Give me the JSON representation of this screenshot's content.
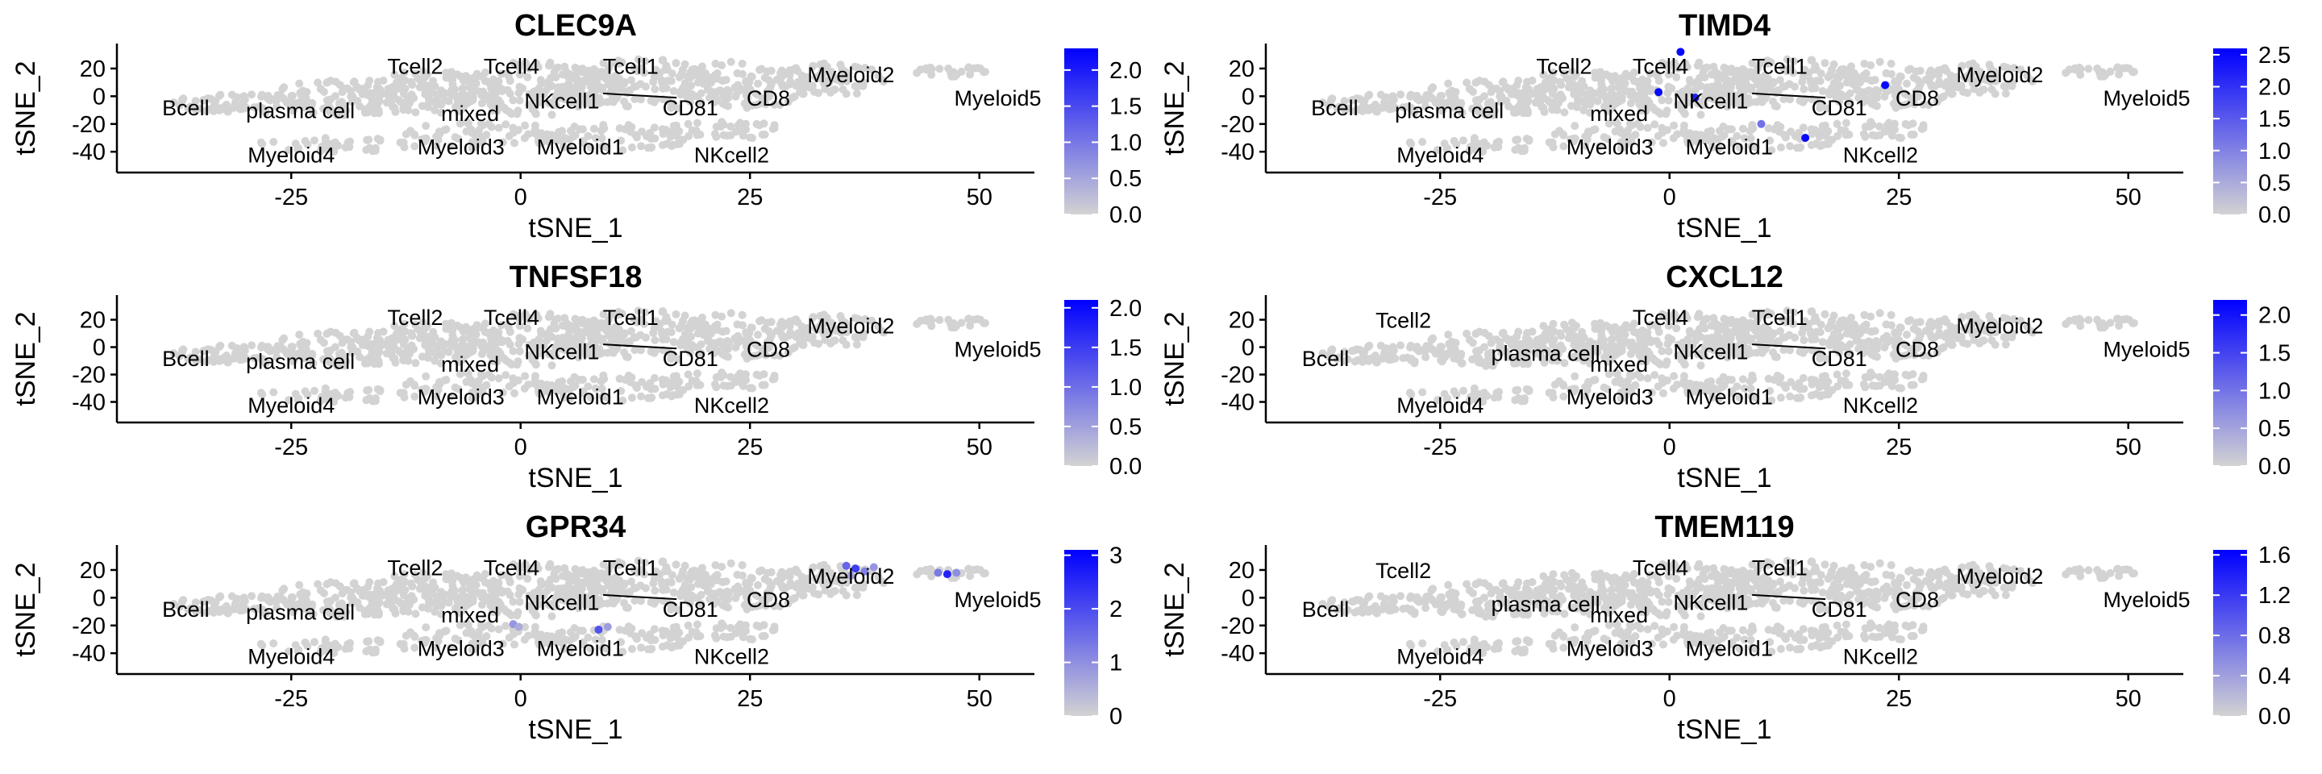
{
  "chart_data": [
    {
      "type": "scatter",
      "title": "CLEC9A",
      "xlabel": "tSNE_1",
      "ylabel": "tSNE_2",
      "xlim": [
        -44,
        56
      ],
      "ylim": [
        -55,
        38
      ],
      "xticks": [
        -25,
        0,
        25,
        50
      ],
      "xtick_labels": [
        "-25",
        "0",
        "25",
        "50"
      ],
      "yticks": [
        20,
        0,
        -20,
        -40
      ],
      "ytick_labels": [
        "20",
        "0",
        "-20",
        "-40"
      ],
      "legend": {
        "position": "right",
        "max": 2.3,
        "ticks": [
          0.0,
          0.5,
          1.0,
          1.5,
          2.0
        ],
        "tick_labels": [
          "0.0",
          "0.5",
          "1.0",
          "1.5",
          "2.0"
        ]
      },
      "cluster_labels": [
        {
          "text": "Tcell2",
          "x": -11.5,
          "y": 22
        },
        {
          "text": "Tcell4",
          "x": -1,
          "y": 22
        },
        {
          "text": "Tcell1",
          "x": 12,
          "y": 22
        },
        {
          "text": "Myeloid2",
          "x": 36,
          "y": 16
        },
        {
          "text": "Bcell",
          "x": -36.5,
          "y": -8
        },
        {
          "text": "plasma cell",
          "x": -24,
          "y": -10
        },
        {
          "text": "mixed",
          "x": -5.5,
          "y": -12
        },
        {
          "text": "NKcell1",
          "x": 4.5,
          "y": -3
        },
        {
          "text": "CD81",
          "x": 18.5,
          "y": -8
        },
        {
          "text": "CD8",
          "x": 27,
          "y": -1
        },
        {
          "text": "Myeloid5",
          "x": 52,
          "y": -1
        },
        {
          "text": "Myeloid4",
          "x": -25,
          "y": -42
        },
        {
          "text": "Myeloid3",
          "x": -6.5,
          "y": -36
        },
        {
          "text": "Myeloid1",
          "x": 6.5,
          "y": -36
        },
        {
          "text": "NKcell2",
          "x": 23,
          "y": -42
        }
      ],
      "expr_points": []
    },
    {
      "type": "scatter",
      "title": "TIMD4",
      "xlabel": "tSNE_1",
      "ylabel": "tSNE_2",
      "xlim": [
        -44,
        56
      ],
      "ylim": [
        -55,
        38
      ],
      "xticks": [
        -25,
        0,
        25,
        50
      ],
      "xtick_labels": [
        "-25",
        "0",
        "25",
        "50"
      ],
      "yticks": [
        20,
        0,
        -20,
        -40
      ],
      "ytick_labels": [
        "20",
        "0",
        "-20",
        "-40"
      ],
      "legend": {
        "position": "right",
        "max": 2.6,
        "ticks": [
          0.0,
          0.5,
          1.0,
          1.5,
          2.0,
          2.5
        ],
        "tick_labels": [
          "0.0",
          "0.5",
          "1.0",
          "1.5",
          "2.0",
          "2.5"
        ]
      },
      "cluster_labels": [
        {
          "text": "Tcell2",
          "x": -11.5,
          "y": 22
        },
        {
          "text": "Tcell4",
          "x": -1,
          "y": 22
        },
        {
          "text": "Tcell1",
          "x": 12,
          "y": 22
        },
        {
          "text": "Myeloid2",
          "x": 36,
          "y": 16
        },
        {
          "text": "Bcell",
          "x": -36.5,
          "y": -8
        },
        {
          "text": "plasma cell",
          "x": -24,
          "y": -10
        },
        {
          "text": "mixed",
          "x": -5.5,
          "y": -12
        },
        {
          "text": "NKcell1",
          "x": 4.5,
          "y": -3
        },
        {
          "text": "CD81",
          "x": 18.5,
          "y": -8
        },
        {
          "text": "CD8",
          "x": 27,
          "y": -1
        },
        {
          "text": "Myeloid5",
          "x": 52,
          "y": -1
        },
        {
          "text": "Myeloid4",
          "x": -25,
          "y": -42
        },
        {
          "text": "Myeloid3",
          "x": -6.5,
          "y": -36
        },
        {
          "text": "Myeloid1",
          "x": 6.5,
          "y": -36
        },
        {
          "text": "NKcell2",
          "x": 23,
          "y": -42
        }
      ],
      "expr_points": [
        {
          "x": 1.2,
          "y": 32,
          "v": 2.5
        },
        {
          "x": -1.2,
          "y": 3,
          "v": 2.5
        },
        {
          "x": 2.8,
          "y": -1,
          "v": 2.2
        },
        {
          "x": 23.5,
          "y": 8,
          "v": 2.5
        },
        {
          "x": 14.8,
          "y": -30,
          "v": 2.5
        },
        {
          "x": 10,
          "y": -20,
          "v": 1.2
        }
      ]
    },
    {
      "type": "scatter",
      "title": "TNFSF18",
      "xlabel": "tSNE_1",
      "ylabel": "tSNE_2",
      "xlim": [
        -44,
        56
      ],
      "ylim": [
        -55,
        38
      ],
      "xticks": [
        -25,
        0,
        25,
        50
      ],
      "xtick_labels": [
        "-25",
        "0",
        "25",
        "50"
      ],
      "yticks": [
        20,
        0,
        -20,
        -40
      ],
      "ytick_labels": [
        "20",
        "0",
        "-20",
        "-40"
      ],
      "legend": {
        "position": "right",
        "max": 2.1,
        "ticks": [
          0.0,
          0.5,
          1.0,
          1.5,
          2.0
        ],
        "tick_labels": [
          "0.0",
          "0.5",
          "1.0",
          "1.5",
          "2.0"
        ]
      },
      "cluster_labels": [
        {
          "text": "Tcell2",
          "x": -11.5,
          "y": 22
        },
        {
          "text": "Tcell4",
          "x": -1,
          "y": 22
        },
        {
          "text": "Tcell1",
          "x": 12,
          "y": 22
        },
        {
          "text": "Myeloid2",
          "x": 36,
          "y": 16
        },
        {
          "text": "Bcell",
          "x": -36.5,
          "y": -8
        },
        {
          "text": "plasma cell",
          "x": -24,
          "y": -10
        },
        {
          "text": "mixed",
          "x": -5.5,
          "y": -12
        },
        {
          "text": "NKcell1",
          "x": 4.5,
          "y": -3
        },
        {
          "text": "CD81",
          "x": 18.5,
          "y": -8
        },
        {
          "text": "CD8",
          "x": 27,
          "y": -1
        },
        {
          "text": "Myeloid5",
          "x": 52,
          "y": -1
        },
        {
          "text": "Myeloid4",
          "x": -25,
          "y": -42
        },
        {
          "text": "Myeloid3",
          "x": -6.5,
          "y": -36
        },
        {
          "text": "Myeloid1",
          "x": 6.5,
          "y": -36
        },
        {
          "text": "NKcell2",
          "x": 23,
          "y": -42
        }
      ],
      "expr_points": []
    },
    {
      "type": "scatter",
      "title": "CXCL12",
      "xlabel": "tSNE_1",
      "ylabel": "tSNE_2",
      "xlim": [
        -44,
        56
      ],
      "ylim": [
        -55,
        38
      ],
      "xticks": [
        -25,
        0,
        25,
        50
      ],
      "xtick_labels": [
        "-25",
        "0",
        "25",
        "50"
      ],
      "yticks": [
        20,
        0,
        -20,
        -40
      ],
      "ytick_labels": [
        "20",
        "0",
        "-20",
        "-40"
      ],
      "legend": {
        "position": "right",
        "max": 2.2,
        "ticks": [
          0.0,
          0.5,
          1.0,
          1.5,
          2.0
        ],
        "tick_labels": [
          "0.0",
          "0.5",
          "1.0",
          "1.5",
          "2.0"
        ]
      },
      "cluster_labels": [
        {
          "text": "Tcell2",
          "x": -29,
          "y": 20
        },
        {
          "text": "Tcell4",
          "x": -1,
          "y": 22
        },
        {
          "text": "Tcell1",
          "x": 12,
          "y": 22
        },
        {
          "text": "Myeloid2",
          "x": 36,
          "y": 16
        },
        {
          "text": "Bcell",
          "x": -37.5,
          "y": -8
        },
        {
          "text": "plasma cell",
          "x": -13.5,
          "y": -4
        },
        {
          "text": "mixed",
          "x": -5.5,
          "y": -12
        },
        {
          "text": "NKcell1",
          "x": 4.5,
          "y": -3
        },
        {
          "text": "CD81",
          "x": 18.5,
          "y": -8
        },
        {
          "text": "CD8",
          "x": 27,
          "y": -1
        },
        {
          "text": "Myeloid5",
          "x": 52,
          "y": -1
        },
        {
          "text": "Myeloid4",
          "x": -25,
          "y": -42
        },
        {
          "text": "Myeloid3",
          "x": -6.5,
          "y": -36
        },
        {
          "text": "Myeloid1",
          "x": 6.5,
          "y": -36
        },
        {
          "text": "NKcell2",
          "x": 23,
          "y": -42
        }
      ],
      "expr_points": []
    },
    {
      "type": "scatter",
      "title": "GPR34",
      "xlabel": "tSNE_1",
      "ylabel": "tSNE_2",
      "xlim": [
        -44,
        56
      ],
      "ylim": [
        -55,
        38
      ],
      "xticks": [
        -25,
        0,
        25,
        50
      ],
      "xtick_labels": [
        "-25",
        "0",
        "25",
        "50"
      ],
      "yticks": [
        20,
        0,
        -20,
        -40
      ],
      "ytick_labels": [
        "20",
        "0",
        "-20",
        "-40"
      ],
      "legend": {
        "position": "right",
        "max": 3.1,
        "ticks": [
          0,
          1,
          2,
          3
        ],
        "tick_labels": [
          "0",
          "1",
          "2",
          "3"
        ]
      },
      "cluster_labels": [
        {
          "text": "Tcell2",
          "x": -11.5,
          "y": 22
        },
        {
          "text": "Tcell4",
          "x": -1,
          "y": 22
        },
        {
          "text": "Tcell1",
          "x": 12,
          "y": 22
        },
        {
          "text": "Myeloid2",
          "x": 36,
          "y": 16
        },
        {
          "text": "Bcell",
          "x": -36.5,
          "y": -8
        },
        {
          "text": "plasma cell",
          "x": -24,
          "y": -10
        },
        {
          "text": "mixed",
          "x": -5.5,
          "y": -12
        },
        {
          "text": "NKcell1",
          "x": 4.5,
          "y": -3
        },
        {
          "text": "CD81",
          "x": 18.5,
          "y": -8
        },
        {
          "text": "CD8",
          "x": 27,
          "y": -1
        },
        {
          "text": "Myeloid5",
          "x": 52,
          "y": -1
        },
        {
          "text": "Myeloid4",
          "x": -25,
          "y": -42
        },
        {
          "text": "Myeloid3",
          "x": -6.5,
          "y": -36
        },
        {
          "text": "Myeloid1",
          "x": 6.5,
          "y": -36
        },
        {
          "text": "NKcell2",
          "x": 23,
          "y": -42
        }
      ],
      "expr_points": [
        {
          "x": 35.5,
          "y": 23,
          "v": 1.6
        },
        {
          "x": 36.5,
          "y": 21,
          "v": 2.2
        },
        {
          "x": 37.5,
          "y": 19,
          "v": 1.2
        },
        {
          "x": 38.5,
          "y": 22,
          "v": 0.9
        },
        {
          "x": 36,
          "y": 16,
          "v": 0.7
        },
        {
          "x": 45.5,
          "y": 18,
          "v": 1.3
        },
        {
          "x": 46.5,
          "y": 17,
          "v": 2.6
        },
        {
          "x": 47.5,
          "y": 18,
          "v": 1.0
        },
        {
          "x": 8.5,
          "y": -23,
          "v": 1.9
        },
        {
          "x": 9.5,
          "y": -21,
          "v": 0.8
        },
        {
          "x": -0.8,
          "y": -19,
          "v": 0.9
        },
        {
          "x": -0.2,
          "y": -21,
          "v": 0.6
        }
      ]
    },
    {
      "type": "scatter",
      "title": "TMEM119",
      "xlabel": "tSNE_1",
      "ylabel": "tSNE_2",
      "xlim": [
        -44,
        56
      ],
      "ylim": [
        -55,
        38
      ],
      "xticks": [
        -25,
        0,
        25,
        50
      ],
      "xtick_labels": [
        "-25",
        "0",
        "25",
        "50"
      ],
      "yticks": [
        20,
        0,
        -20,
        -40
      ],
      "ytick_labels": [
        "20",
        "0",
        "-20",
        "-40"
      ],
      "legend": {
        "position": "right",
        "max": 1.65,
        "ticks": [
          0.0,
          0.4,
          0.8,
          1.2,
          1.6
        ],
        "tick_labels": [
          "0.0",
          "0.4",
          "0.8",
          "1.2",
          "1.6"
        ]
      },
      "cluster_labels": [
        {
          "text": "Tcell2",
          "x": -29,
          "y": 20
        },
        {
          "text": "Tcell4",
          "x": -1,
          "y": 22
        },
        {
          "text": "Tcell1",
          "x": 12,
          "y": 22
        },
        {
          "text": "Myeloid2",
          "x": 36,
          "y": 16
        },
        {
          "text": "Bcell",
          "x": -37.5,
          "y": -8
        },
        {
          "text": "plasma cell",
          "x": -13.5,
          "y": -4
        },
        {
          "text": "mixed",
          "x": -5.5,
          "y": -12
        },
        {
          "text": "NKcell1",
          "x": 4.5,
          "y": -3
        },
        {
          "text": "CD81",
          "x": 18.5,
          "y": -8
        },
        {
          "text": "CD8",
          "x": 27,
          "y": -1
        },
        {
          "text": "Myeloid5",
          "x": 52,
          "y": -1
        },
        {
          "text": "Myeloid4",
          "x": -25,
          "y": -42
        },
        {
          "text": "Myeloid3",
          "x": -6.5,
          "y": -36
        },
        {
          "text": "Myeloid1",
          "x": 6.5,
          "y": -36
        },
        {
          "text": "NKcell2",
          "x": 23,
          "y": -42
        }
      ],
      "expr_points": []
    }
  ],
  "colors": {
    "low": "#d3d3d3",
    "high": "#0000ff",
    "background_cells": "#d3d3d3",
    "text": "#000000"
  }
}
